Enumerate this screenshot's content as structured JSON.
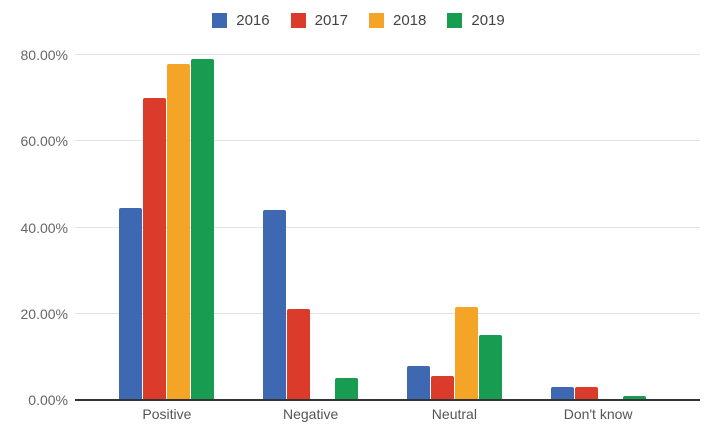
{
  "chart_data": {
    "type": "bar",
    "title": "",
    "xlabel": "",
    "ylabel": "",
    "categories": [
      "Positive",
      "Negative",
      "Neutral",
      "Don't know"
    ],
    "series": [
      {
        "name": "2016",
        "color": "#3E68B2",
        "values": [
          44.5,
          44,
          8,
          3
        ]
      },
      {
        "name": "2017",
        "color": "#DB3B2B",
        "values": [
          70,
          21,
          5.5,
          3
        ]
      },
      {
        "name": "2018",
        "color": "#F4A427",
        "values": [
          78,
          0,
          21.5,
          0
        ]
      },
      {
        "name": "2019",
        "color": "#179C52",
        "values": [
          79,
          5,
          15,
          1
        ]
      }
    ],
    "ylim": [
      0,
      80
    ],
    "yticks": [
      0,
      20,
      40,
      60,
      80
    ],
    "ytick_labels": [
      "0.00%",
      "20.00%",
      "40.00%",
      "60.00%",
      "80.00%"
    ],
    "value_format": "percent",
    "legend_position": "top",
    "grid": true
  },
  "colors": {
    "background": "#ffffff",
    "grid_line": "#e3e3e3",
    "axis_line": "#333333",
    "tick_label": "#666666",
    "category_label": "#555555",
    "legend_label": "#444444"
  }
}
